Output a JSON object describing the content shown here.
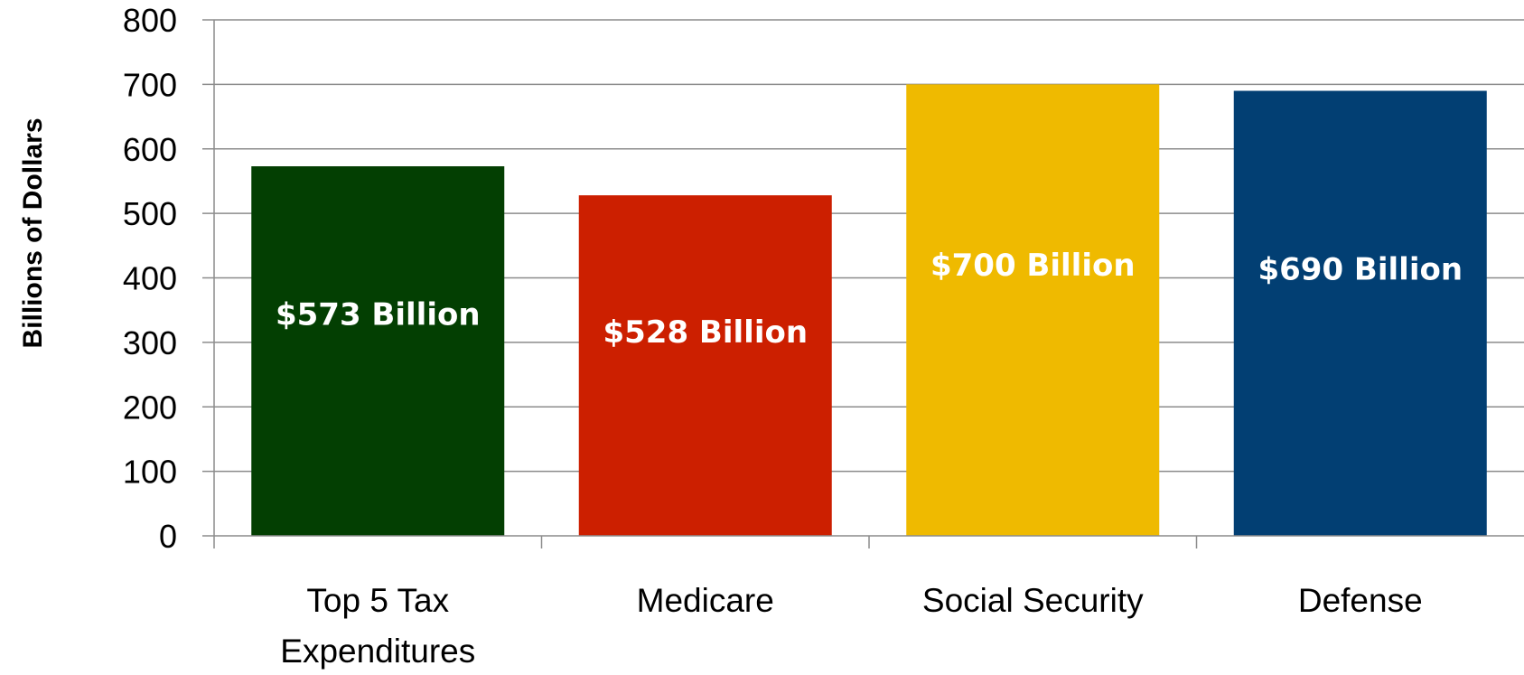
{
  "chart_data": {
    "type": "bar",
    "categories": [
      "Top 5 Tax\nExpenditures",
      "Medicare",
      "Social Security",
      "Defense"
    ],
    "values": [
      573,
      528,
      700,
      690
    ],
    "data_labels": [
      "$573 Billion",
      "$528 Billion",
      "$700 Billion",
      "$690 Billion"
    ],
    "colors": [
      "#033f02",
      "#cc1f00",
      "#efba00",
      "#023f73"
    ],
    "title": "",
    "xlabel": "",
    "ylabel": "Billions of Dollars",
    "ylim": [
      0,
      800
    ],
    "yticks": [
      0,
      100,
      200,
      300,
      400,
      500,
      600,
      700,
      800
    ],
    "grid": true,
    "legend": "none"
  }
}
